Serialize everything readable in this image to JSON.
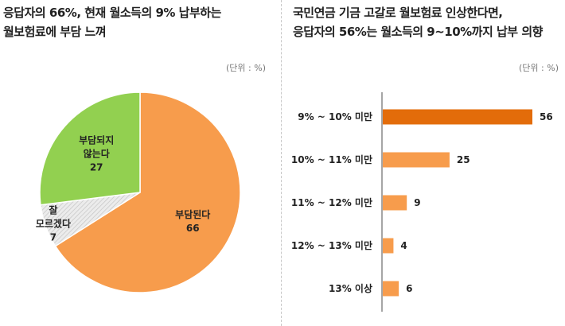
{
  "left": {
    "title_line1": "응답자의 66%, 현재 월소득의 9% 납부하는",
    "title_line2": "월보험료에 부담 느껴",
    "unit": "(단위 : %)"
  },
  "right": {
    "title_line1": "국민연금 기금 고갈로 월보험료 인상한다면,",
    "title_line2": "응답자의 56%는 월소득의 9~10%까지 납부 의향",
    "unit": "(단위 : %)"
  },
  "chart_data": [
    {
      "type": "pie",
      "slices": [
        {
          "label_lines": [
            "부담된다"
          ],
          "value": 66,
          "color": "#f79c4c"
        },
        {
          "label_lines": [
            "잘",
            "모르겠다"
          ],
          "value": 7,
          "color": "#e6e6e6",
          "pattern": "hatch"
        },
        {
          "label_lines": [
            "부담되지",
            "않는다"
          ],
          "value": 27,
          "color": "#92d050"
        }
      ]
    },
    {
      "type": "bar",
      "orientation": "horizontal",
      "categories": [
        "9% ~ 10% 미만",
        "10% ~ 11% 미만",
        "11% ~ 12% 미만",
        "12% ~ 13% 미만",
        "13% 이상"
      ],
      "values": [
        56,
        25,
        9,
        4,
        6
      ],
      "colors": [
        "#e36c0a",
        "#f79c4c",
        "#f79c4c",
        "#f79c4c",
        "#f79c4c"
      ]
    }
  ]
}
